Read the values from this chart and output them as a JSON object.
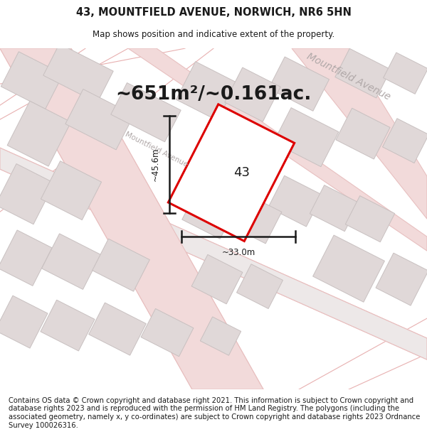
{
  "title_line1": "43, MOUNTFIELD AVENUE, NORWICH, NR6 5HN",
  "title_line2": "Map shows position and indicative extent of the property.",
  "area_text": "~651m²/~0.161ac.",
  "property_number": "43",
  "dim_width": "~33.0m",
  "dim_height": "~45.6m",
  "street_label_upper": "Mountfield Avenue",
  "street_label_center": "Mountfield Avenue",
  "footer_text": "Contains OS data © Crown copyright and database right 2021. This information is subject to Crown copyright and database rights 2023 and is reproduced with the permission of HM Land Registry. The polygons (including the associated geometry, namely x, y co-ordinates) are subject to Crown copyright and database rights 2023 Ordnance Survey 100026316.",
  "background_color": "#ffffff",
  "map_bg_color": "#f5f0f0",
  "road_fill": "#f2dada",
  "road_edge": "#e8c0c0",
  "road_fill2": "#ede8e8",
  "bld_fill": "#e0d8d8",
  "bld_edge": "#c8c0c0",
  "prop_fill": "#ffffff",
  "prop_edge": "#dd0000",
  "dim_color": "#1a1a1a",
  "text_color": "#1a1a1a",
  "street_color": "#b0a8a8",
  "title_fs": 10.5,
  "subtitle_fs": 8.5,
  "area_fs": 19,
  "label_fs": 13,
  "dim_fs": 8.5,
  "footer_fs": 7.2,
  "street_fs": 7.5
}
